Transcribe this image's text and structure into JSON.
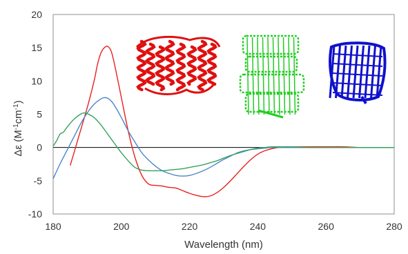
{
  "chart_data": {
    "type": "line",
    "title": "",
    "xlabel": "Wavelength (nm)",
    "ylabel_parts": [
      "Δε (M",
      "-1",
      "cm",
      "-1",
      ")"
    ],
    "xlim": [
      180,
      280
    ],
    "ylim": [
      -10,
      20
    ],
    "xticks": [
      "180",
      "200",
      "220",
      "240",
      "260",
      "280"
    ],
    "yticks": [
      "-10",
      "-5",
      "0",
      "5",
      "10",
      "15",
      "20"
    ],
    "grid": false,
    "legend": "none",
    "series": [
      {
        "color": "#e8201e",
        "x": [
          185,
          186,
          188,
          190,
          192,
          193,
          194,
          195,
          196,
          197,
          198,
          200,
          202,
          204,
          206,
          208,
          210,
          212,
          214,
          216,
          218,
          220,
          222,
          224,
          226,
          228,
          230,
          232,
          234,
          236,
          238,
          240,
          242,
          244,
          246,
          248,
          250,
          255,
          260,
          265,
          270,
          275,
          280
        ],
        "y": [
          -2.7,
          -1.0,
          2.5,
          6.0,
          10.0,
          12.5,
          14.2,
          15.0,
          15.2,
          14.5,
          12.5,
          7.5,
          2.5,
          -1.5,
          -4.2,
          -5.5,
          -5.7,
          -5.8,
          -6.0,
          -6.1,
          -6.5,
          -6.9,
          -7.2,
          -7.4,
          -7.3,
          -6.8,
          -6.0,
          -5.0,
          -3.9,
          -2.8,
          -1.8,
          -1.0,
          -0.5,
          -0.2,
          0.0,
          0.1,
          0.1,
          0.1,
          0.1,
          0.1,
          0.0,
          0.0,
          0.0
        ]
      },
      {
        "color": "#4a86c8",
        "x": [
          180,
          182,
          184,
          186,
          188,
          190,
          192,
          194,
          195,
          196,
          197,
          198,
          200,
          202,
          204,
          206,
          208,
          210,
          212,
          214,
          216,
          218,
          220,
          222,
          224,
          226,
          228,
          230,
          232,
          234,
          236,
          238,
          240,
          242,
          244,
          246,
          248,
          250,
          255,
          260,
          265,
          270,
          275,
          280
        ],
        "y": [
          -4.7,
          -2.5,
          -0.5,
          1.5,
          3.5,
          5.2,
          6.5,
          7.3,
          7.5,
          7.4,
          7.0,
          6.3,
          4.5,
          2.5,
          0.8,
          -0.8,
          -1.9,
          -2.8,
          -3.5,
          -3.9,
          -4.2,
          -4.3,
          -4.2,
          -3.9,
          -3.5,
          -3.0,
          -2.4,
          -1.8,
          -1.3,
          -0.8,
          -0.5,
          -0.3,
          -0.2,
          -0.1,
          0.0,
          0.0,
          0.0,
          0.0,
          0.0,
          0.0,
          0.0,
          0.0,
          0.0,
          0.0
        ]
      },
      {
        "color": "#35a35b",
        "x": [
          180,
          181,
          182,
          183,
          184,
          186,
          188,
          189,
          190,
          192,
          194,
          196,
          198,
          200,
          202,
          204,
          206,
          208,
          210,
          212,
          214,
          216,
          218,
          220,
          222,
          224,
          226,
          228,
          230,
          232,
          234,
          236,
          238,
          240,
          242,
          244,
          246,
          248,
          250,
          255,
          260,
          265,
          270,
          275,
          280
        ],
        "y": [
          0.2,
          1.0,
          2.0,
          2.3,
          3.0,
          4.2,
          5.0,
          5.2,
          5.1,
          4.5,
          3.4,
          2.0,
          0.6,
          -0.8,
          -2.0,
          -3.0,
          -3.4,
          -3.5,
          -3.5,
          -3.5,
          -3.4,
          -3.3,
          -3.2,
          -3.0,
          -2.8,
          -2.6,
          -2.3,
          -2.0,
          -1.6,
          -1.2,
          -0.9,
          -0.6,
          -0.3,
          -0.1,
          0.0,
          0.1,
          0.1,
          0.1,
          0.1,
          0.0,
          0.0,
          0.0,
          0.0,
          0.0,
          0.0
        ]
      }
    ]
  },
  "structures": [
    {
      "name": "alpha-helical-protein-structure",
      "color": "#e01010"
    },
    {
      "name": "mixed-protein-complex-structure",
      "color": "#22cc22"
    },
    {
      "name": "beta-barrel-protein-structure",
      "color": "#1010cc"
    }
  ]
}
